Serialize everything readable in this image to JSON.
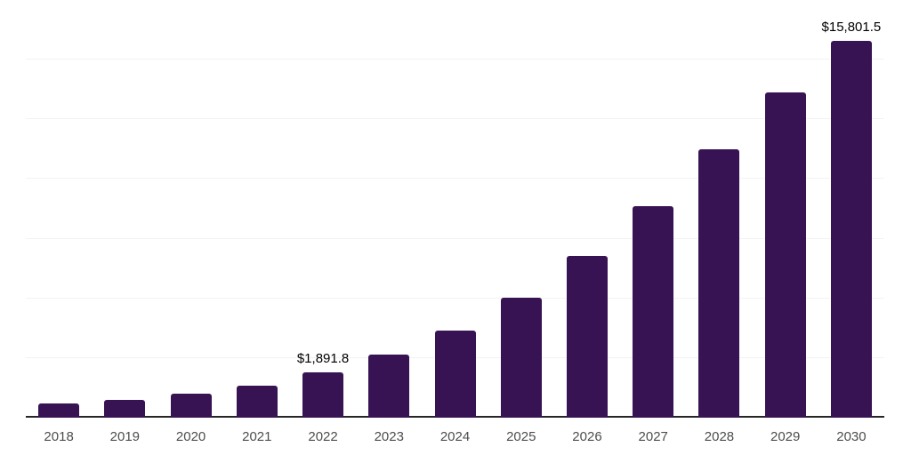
{
  "chart_data": {
    "type": "bar",
    "title": "",
    "xlabel": "",
    "ylabel": "",
    "categories": [
      "2018",
      "2019",
      "2020",
      "2021",
      "2022",
      "2023",
      "2024",
      "2025",
      "2026",
      "2027",
      "2028",
      "2029",
      "2030"
    ],
    "values": [
      590,
      760,
      990,
      1350,
      1891.8,
      2640,
      3660,
      5030,
      6790,
      8850,
      11230,
      13630,
      15801.5
    ],
    "data_labels": [
      {
        "category": "2022",
        "text": "$1,891.8"
      },
      {
        "category": "2030",
        "text": "$15,801.5"
      }
    ],
    "ylim": [
      0,
      17500
    ],
    "gridline_interval": 2500,
    "grid": true,
    "legend": false,
    "colors": {
      "bar": "#371353",
      "axis": "#262626",
      "gridline": "#f2f2f2",
      "tick_label": "#4d4d4d",
      "data_label": "#000000",
      "background": "#ffffff"
    }
  }
}
